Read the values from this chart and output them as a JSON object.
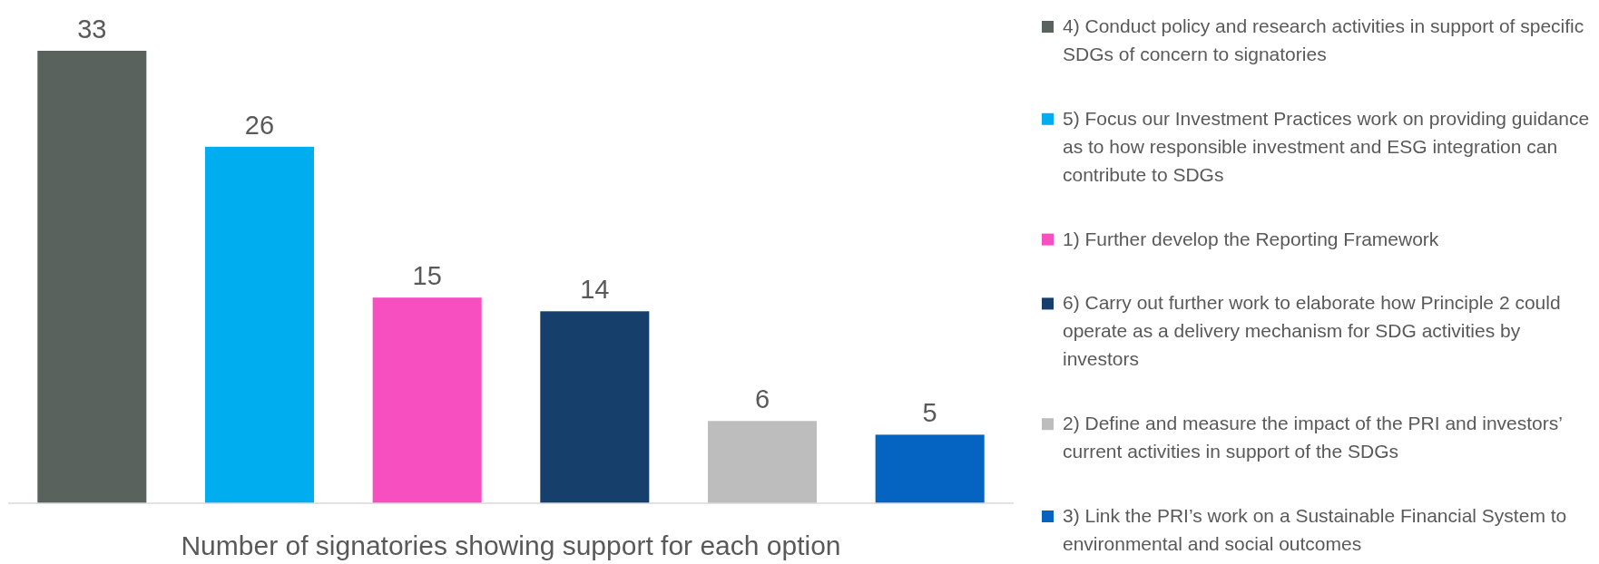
{
  "chart_data": {
    "type": "bar",
    "xlabel": "Number of signatories showing support for each option",
    "categories": [
      null,
      null,
      null,
      null,
      null,
      null
    ],
    "series": [
      {
        "name": "4) Conduct policy and research activities in support of specific SDGs of concern to signatories",
        "color": "#5a625d",
        "values": [
          33,
          null,
          null,
          null,
          null,
          null
        ]
      },
      {
        "name": "5) Focus our Investment Practices work on providing guidance as to how responsible investment and ESG integration can contribute to SDGs",
        "color": "#00aeef",
        "values": [
          null,
          26,
          null,
          null,
          null,
          null
        ]
      },
      {
        "name": "1) Further develop the Reporting Framework",
        "color": "#f74fbf",
        "values": [
          null,
          null,
          15,
          null,
          null,
          null
        ]
      },
      {
        "name": "6) Carry out further work to elaborate how Principle 2 could operate as a delivery mechanism for SDG activities by investors",
        "color": "#173f6b",
        "values": [
          null,
          null,
          null,
          14,
          null,
          null
        ]
      },
      {
        "name": "2) Define and measure the impact of the PRI and investors’ current activities in support of the SDGs",
        "color": "#bdbdbd",
        "values": [
          null,
          null,
          null,
          null,
          6,
          null
        ]
      },
      {
        "name": "3) Link the PRI’s work on a Sustainable Financial System to environmental and social outcomes",
        "color": "#0563c1",
        "values": [
          null,
          null,
          null,
          null,
          null,
          5
        ]
      }
    ],
    "data_labels": true,
    "stacked": true,
    "legend": "right"
  }
}
